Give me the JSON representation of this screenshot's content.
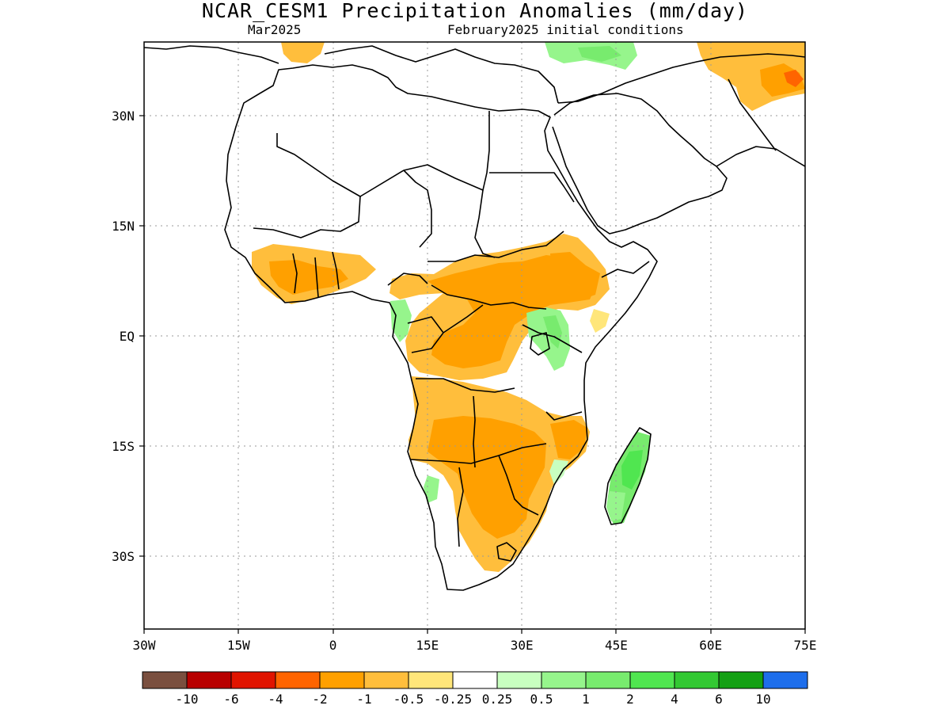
{
  "title": "NCAR_CESM1 Precipitation Anomalies (mm/day)",
  "subtitle_left": "Mar2025",
  "subtitle_right": "February2025 initial conditions",
  "map": {
    "lon_range": [
      -30,
      75
    ],
    "lat_range": [
      -40,
      40
    ],
    "x_ticks": [
      {
        "value": -30,
        "label": "30W"
      },
      {
        "value": -15,
        "label": "15W"
      },
      {
        "value": 0,
        "label": "0"
      },
      {
        "value": 15,
        "label": "15E"
      },
      {
        "value": 30,
        "label": "30E"
      },
      {
        "value": 45,
        "label": "45E"
      },
      {
        "value": 60,
        "label": "60E"
      },
      {
        "value": 75,
        "label": "75E"
      }
    ],
    "y_ticks": [
      {
        "value": 30,
        "label": "30N"
      },
      {
        "value": 15,
        "label": "15N"
      },
      {
        "value": 0,
        "label": "EQ"
      },
      {
        "value": -15,
        "label": "15S"
      },
      {
        "value": -30,
        "label": "30S"
      }
    ],
    "grid": "dotted"
  },
  "legend": {
    "colors": [
      "#7a4f3f",
      "#b80000",
      "#e01400",
      "#ff6400",
      "#ffa000",
      "#ffbe3c",
      "#ffe67a",
      "#ffffff",
      "#c8ffc0",
      "#96f58c",
      "#78eb6e",
      "#50e650",
      "#32c832",
      "#14a014",
      "#1e6eeb"
    ],
    "labels": [
      "-10",
      "-6",
      "-4",
      "-2",
      "-1",
      "-0.5",
      "-0.25",
      "0.25",
      "0.5",
      "1",
      "2",
      "4",
      "6",
      "10"
    ]
  }
}
